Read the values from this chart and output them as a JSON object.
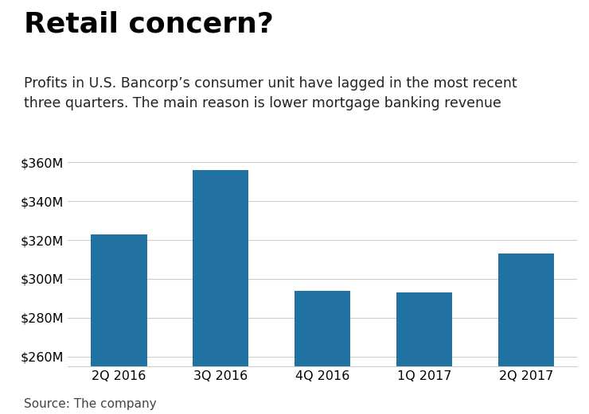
{
  "title": "Retail concern?",
  "subtitle": "Profits in U.S. Bancorp’s consumer unit have lagged in the most recent\nthree quarters. The main reason is lower mortgage banking revenue",
  "source": "Source: The company",
  "categories": [
    "2Q 2016",
    "3Q 2016",
    "4Q 2016",
    "1Q 2017",
    "2Q 2017"
  ],
  "values": [
    323,
    356,
    294,
    293,
    313
  ],
  "bar_color": "#2271a3",
  "ylim": [
    255,
    370
  ],
  "yticks": [
    260,
    280,
    300,
    320,
    340,
    360
  ],
  "background_color": "#ffffff",
  "title_fontsize": 26,
  "subtitle_fontsize": 12.5,
  "tick_fontsize": 11.5,
  "source_fontsize": 11
}
